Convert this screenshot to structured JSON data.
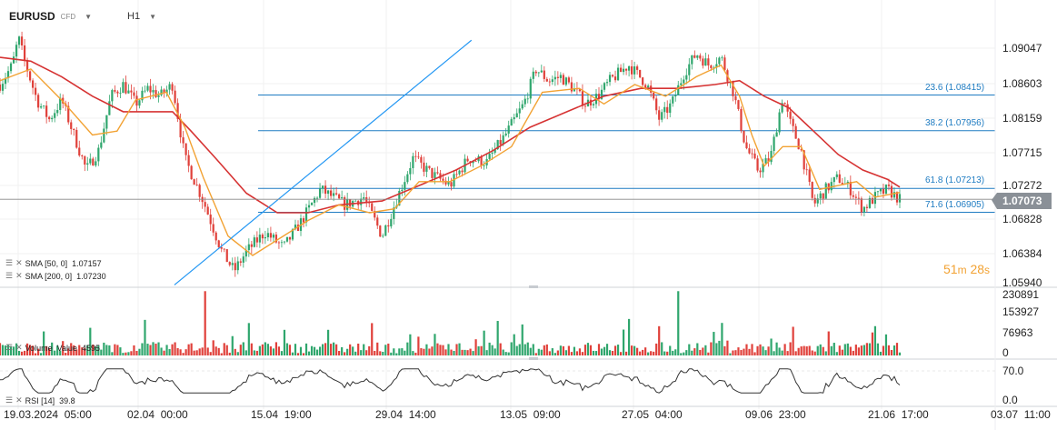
{
  "toolbar": {
    "symbol": "EURUSD",
    "symbol_type": "CFD",
    "interval": "H1",
    "dropdown_icon": "caret-down-icon"
  },
  "price_axis": {
    "labels": [
      "1.09047",
      "1.08603",
      "1.08159",
      "1.07715",
      "1.07272",
      "1.06828",
      "1.06384",
      "1.05940"
    ],
    "current_price": "1.07073"
  },
  "volume_axis": {
    "labels": [
      "230891",
      "153927",
      "76963",
      "0"
    ]
  },
  "rsi_axis": {
    "labels": [
      "70.0",
      "0.0"
    ]
  },
  "time_axis": {
    "labels": [
      "19.03.2024  05:00",
      "02.04  00:00",
      "15.04  19:00",
      "29.04  14:00",
      "13.05  09:00",
      "27.05  04:00",
      "09.06  23:00",
      "21.06  17:00",
      "03.07  11:00"
    ]
  },
  "fibonacci": [
    {
      "label": "23.6 (1.08415)",
      "price": 1.08415
    },
    {
      "label": "38.2 (1.07956)",
      "price": 1.07956
    },
    {
      "label": "61.8 (1.07213)",
      "price": 1.07213
    },
    {
      "label": "71.6 (1.06905)",
      "price": 1.06905
    }
  ],
  "indicators": {
    "sma50": "SMA [50, 0]  1.07157",
    "sma200": "SMA [200, 0]  1.07230",
    "volume": "Volume  Value  4595",
    "rsi": "RSI [14]  39.8"
  },
  "countdown": {
    "minutes": "51",
    "minutes_unit": "m",
    "seconds": "28",
    "seconds_unit": "s"
  },
  "colors": {
    "up": "#2fa66d",
    "down": "#e0403a",
    "sma50": "#f2a233",
    "sma200": "#d63333",
    "fib": "#1f7cc2",
    "trend": "#2196f3",
    "price_tag": "#8a9097",
    "countdown": "#f2a233"
  },
  "chart_data": {
    "type": "candlestick",
    "symbol": "EURUSD",
    "timeframe": "H1",
    "ylim": [
      1.0594,
      1.0924
    ],
    "close_path": [
      [
        0,
        1.0855
      ],
      [
        0.02,
        1.088
      ],
      [
        0.03,
        1.0915
      ],
      [
        0.04,
        1.0885
      ],
      [
        0.06,
        1.0835
      ],
      [
        0.08,
        1.081
      ],
      [
        0.1,
        1.0835
      ],
      [
        0.12,
        1.079
      ],
      [
        0.14,
        1.0745
      ],
      [
        0.16,
        1.077
      ],
      [
        0.18,
        1.084
      ],
      [
        0.2,
        1.0855
      ],
      [
        0.22,
        1.083
      ],
      [
        0.24,
        1.085
      ],
      [
        0.26,
        1.084
      ],
      [
        0.28,
        1.0855
      ],
      [
        0.3,
        1.076
      ],
      [
        0.33,
        1.0705
      ],
      [
        0.36,
        1.064
      ],
      [
        0.38,
        1.0615
      ],
      [
        0.4,
        1.064
      ],
      [
        0.43,
        1.0665
      ],
      [
        0.46,
        1.0645
      ],
      [
        0.49,
        1.068
      ],
      [
        0.52,
        1.072
      ],
      [
        0.56,
        1.07
      ],
      [
        0.59,
        1.071
      ],
      [
        0.62,
        1.066
      ],
      [
        0.64,
        1.07
      ],
      [
        0.67,
        1.076
      ],
      [
        0.7,
        1.074
      ],
      [
        0.73,
        1.0725
      ],
      [
        0.76,
        1.076
      ],
      [
        0.79,
        1.0755
      ],
      [
        0.82,
        1.079
      ],
      [
        0.85,
        1.083
      ],
      [
        0.87,
        1.0875
      ],
      [
        0.89,
        1.086
      ],
      [
        0.91,
        1.0865
      ],
      [
        0.93,
        1.085
      ],
      [
        0.95,
        1.083
      ],
      [
        0.97,
        1.084
      ],
      [
        0.99,
        1.086
      ],
      [
        1.02,
        1.088
      ],
      [
        1.05,
        1.0855
      ],
      [
        1.07,
        1.081
      ],
      [
        1.09,
        1.083
      ],
      [
        1.11,
        1.087
      ],
      [
        1.13,
        1.0895
      ],
      [
        1.15,
        1.088
      ],
      [
        1.17,
        1.089
      ],
      [
        1.19,
        1.0845
      ],
      [
        1.21,
        1.0775
      ],
      [
        1.23,
        1.0745
      ],
      [
        1.25,
        1.076
      ],
      [
        1.27,
        1.084
      ],
      [
        1.28,
        1.081
      ],
      [
        1.3,
        1.077
      ],
      [
        1.32,
        1.07
      ],
      [
        1.34,
        1.072
      ],
      [
        1.36,
        1.0735
      ],
      [
        1.38,
        1.072
      ],
      [
        1.4,
        1.0695
      ],
      [
        1.42,
        1.071
      ],
      [
        1.44,
        1.072
      ],
      [
        1.46,
        1.0707
      ]
    ],
    "sma50_path": [
      [
        0,
        1.086
      ],
      [
        0.05,
        1.0875
      ],
      [
        0.1,
        1.0835
      ],
      [
        0.15,
        1.079
      ],
      [
        0.19,
        1.0795
      ],
      [
        0.22,
        1.0835
      ],
      [
        0.27,
        1.0845
      ],
      [
        0.3,
        1.08
      ],
      [
        0.33,
        1.0735
      ],
      [
        0.37,
        1.066
      ],
      [
        0.41,
        1.0635
      ],
      [
        0.45,
        1.0655
      ],
      [
        0.5,
        1.068
      ],
      [
        0.55,
        1.07
      ],
      [
        0.6,
        1.069
      ],
      [
        0.64,
        1.0695
      ],
      [
        0.68,
        1.073
      ],
      [
        0.73,
        1.073
      ],
      [
        0.78,
        1.075
      ],
      [
        0.83,
        1.0775
      ],
      [
        0.88,
        1.0845
      ],
      [
        0.94,
        1.085
      ],
      [
        0.98,
        1.083
      ],
      [
        1.03,
        1.0855
      ],
      [
        1.08,
        1.084
      ],
      [
        1.13,
        1.0865
      ],
      [
        1.17,
        1.088
      ],
      [
        1.2,
        1.084
      ],
      [
        1.22,
        1.079
      ],
      [
        1.24,
        1.075
      ],
      [
        1.27,
        1.0775
      ],
      [
        1.3,
        1.0775
      ],
      [
        1.33,
        1.072
      ],
      [
        1.36,
        1.0725
      ],
      [
        1.39,
        1.073
      ],
      [
        1.42,
        1.071
      ],
      [
        1.46,
        1.0716
      ]
    ],
    "sma200_path": [
      [
        0,
        1.089
      ],
      [
        0.05,
        1.0885
      ],
      [
        0.1,
        1.0865
      ],
      [
        0.15,
        1.084
      ],
      [
        0.2,
        1.082
      ],
      [
        0.25,
        1.082
      ],
      [
        0.28,
        1.082
      ],
      [
        0.31,
        1.0795
      ],
      [
        0.35,
        1.076
      ],
      [
        0.4,
        1.0715
      ],
      [
        0.45,
        1.069
      ],
      [
        0.5,
        1.069
      ],
      [
        0.55,
        1.07
      ],
      [
        0.62,
        1.0705
      ],
      [
        0.68,
        1.0725
      ],
      [
        0.74,
        1.0745
      ],
      [
        0.8,
        1.077
      ],
      [
        0.86,
        1.08
      ],
      [
        0.92,
        1.082
      ],
      [
        0.98,
        1.084
      ],
      [
        1.04,
        1.085
      ],
      [
        1.1,
        1.085
      ],
      [
        1.16,
        1.0855
      ],
      [
        1.2,
        1.086
      ],
      [
        1.24,
        1.084
      ],
      [
        1.28,
        1.0825
      ],
      [
        1.32,
        1.0795
      ],
      [
        1.36,
        1.0765
      ],
      [
        1.4,
        1.0745
      ],
      [
        1.44,
        1.0733
      ],
      [
        1.46,
        1.0723
      ]
    ],
    "trendline": {
      "from": [
        0.283,
        1.0597
      ],
      "to": [
        0.765,
        1.0912
      ]
    },
    "volume_max": 230891,
    "rsi_range": [
      0,
      100
    ]
  }
}
